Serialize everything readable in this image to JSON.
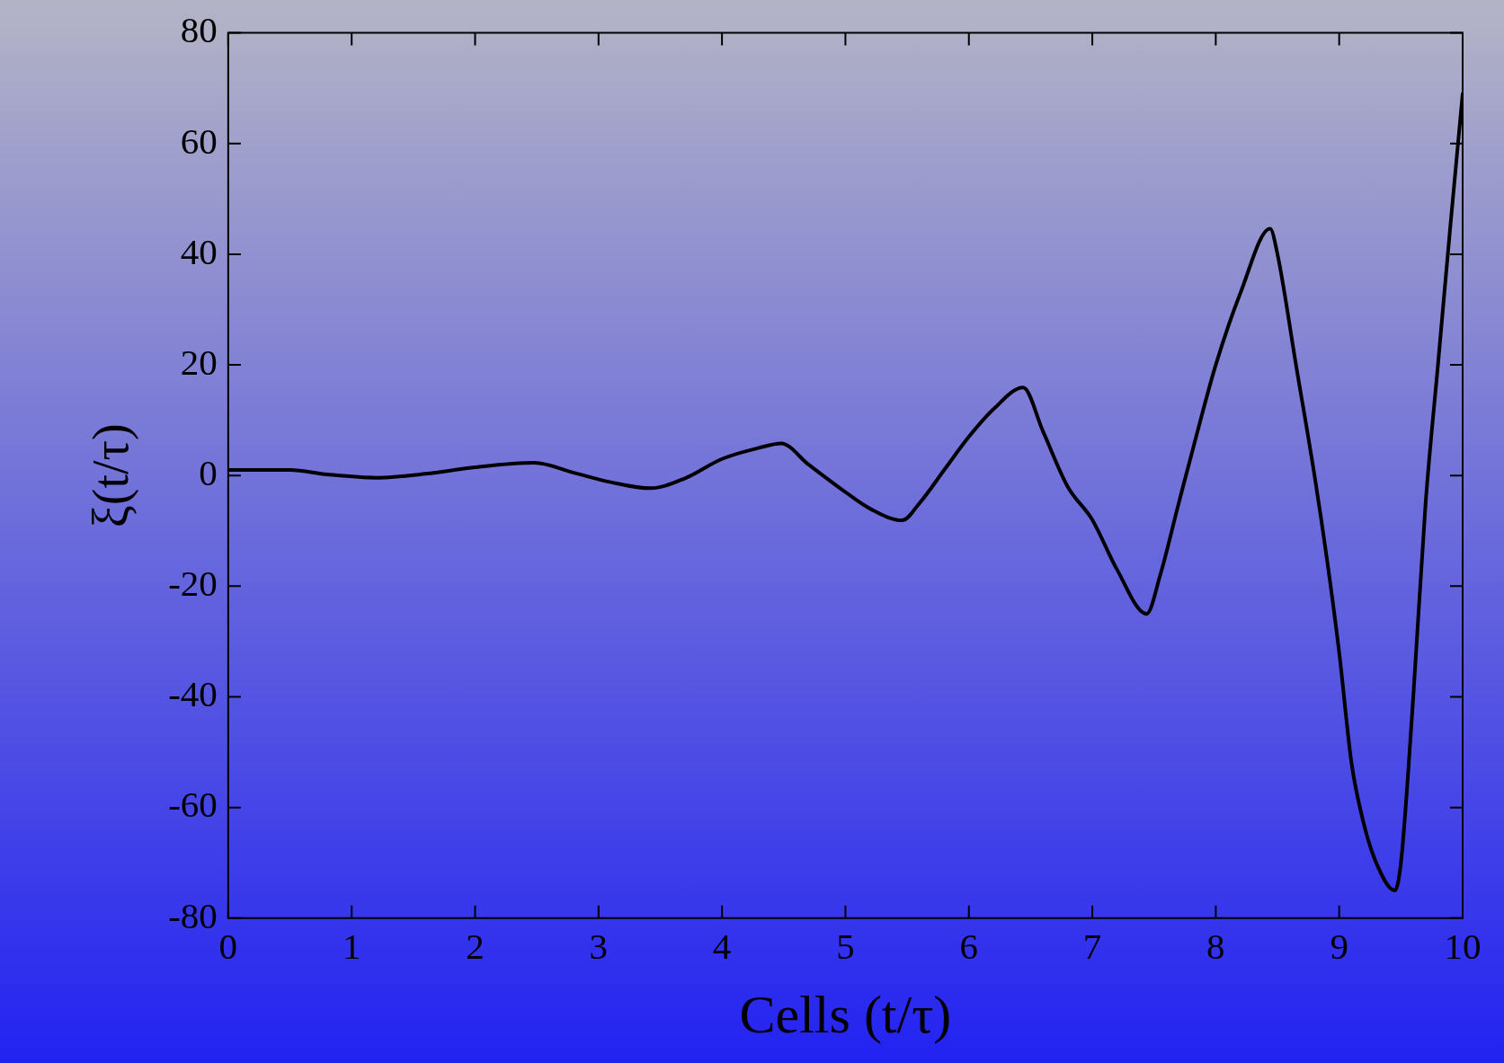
{
  "chart_data": {
    "type": "line",
    "xlabel": "Cells (t/τ)",
    "ylabel": "ξ(t/τ)",
    "xlim": [
      0,
      10
    ],
    "ylim": [
      -80,
      80
    ],
    "xticks": [
      0,
      1,
      2,
      3,
      4,
      5,
      6,
      7,
      8,
      9,
      10
    ],
    "yticks": [
      -80,
      -60,
      -40,
      -20,
      0,
      20,
      40,
      60,
      80
    ],
    "grid": false,
    "legend": false,
    "marker": "none",
    "line_style": "solid",
    "series": [
      {
        "color": "#000000",
        "x": [
          0,
          0.5,
          0.8,
          1.2,
          1.6,
          2.0,
          2.48,
          2.8,
          3.1,
          3.42,
          3.7,
          4.0,
          4.3,
          4.48,
          4.7,
          5.0,
          5.2,
          5.46,
          5.6,
          5.8,
          6.0,
          6.2,
          6.44,
          6.6,
          6.8,
          7.0,
          7.2,
          7.44,
          7.55,
          7.7,
          7.9,
          8.0,
          8.2,
          8.44,
          8.5,
          8.65,
          8.8,
          8.9,
          9.0,
          9.1,
          9.2,
          9.3,
          9.45,
          9.5,
          9.6,
          9.7,
          9.8,
          9.9,
          10
        ],
        "values": [
          1,
          1,
          0.2,
          -0.4,
          0.3,
          1.5,
          2.3,
          0.5,
          -1.2,
          -2.3,
          -0.5,
          3,
          5,
          5.8,
          2,
          -3,
          -6,
          -8.1,
          -5,
          1,
          7,
          12,
          15.9,
          8,
          -2,
          -8,
          -17,
          -25,
          -18,
          -5,
          12,
          20,
          33,
          44.6,
          40,
          20,
          0,
          -15,
          -32,
          -52,
          -63,
          -70,
          -75,
          -70,
          -40,
          -5,
          20,
          45,
          69
        ]
      }
    ]
  }
}
